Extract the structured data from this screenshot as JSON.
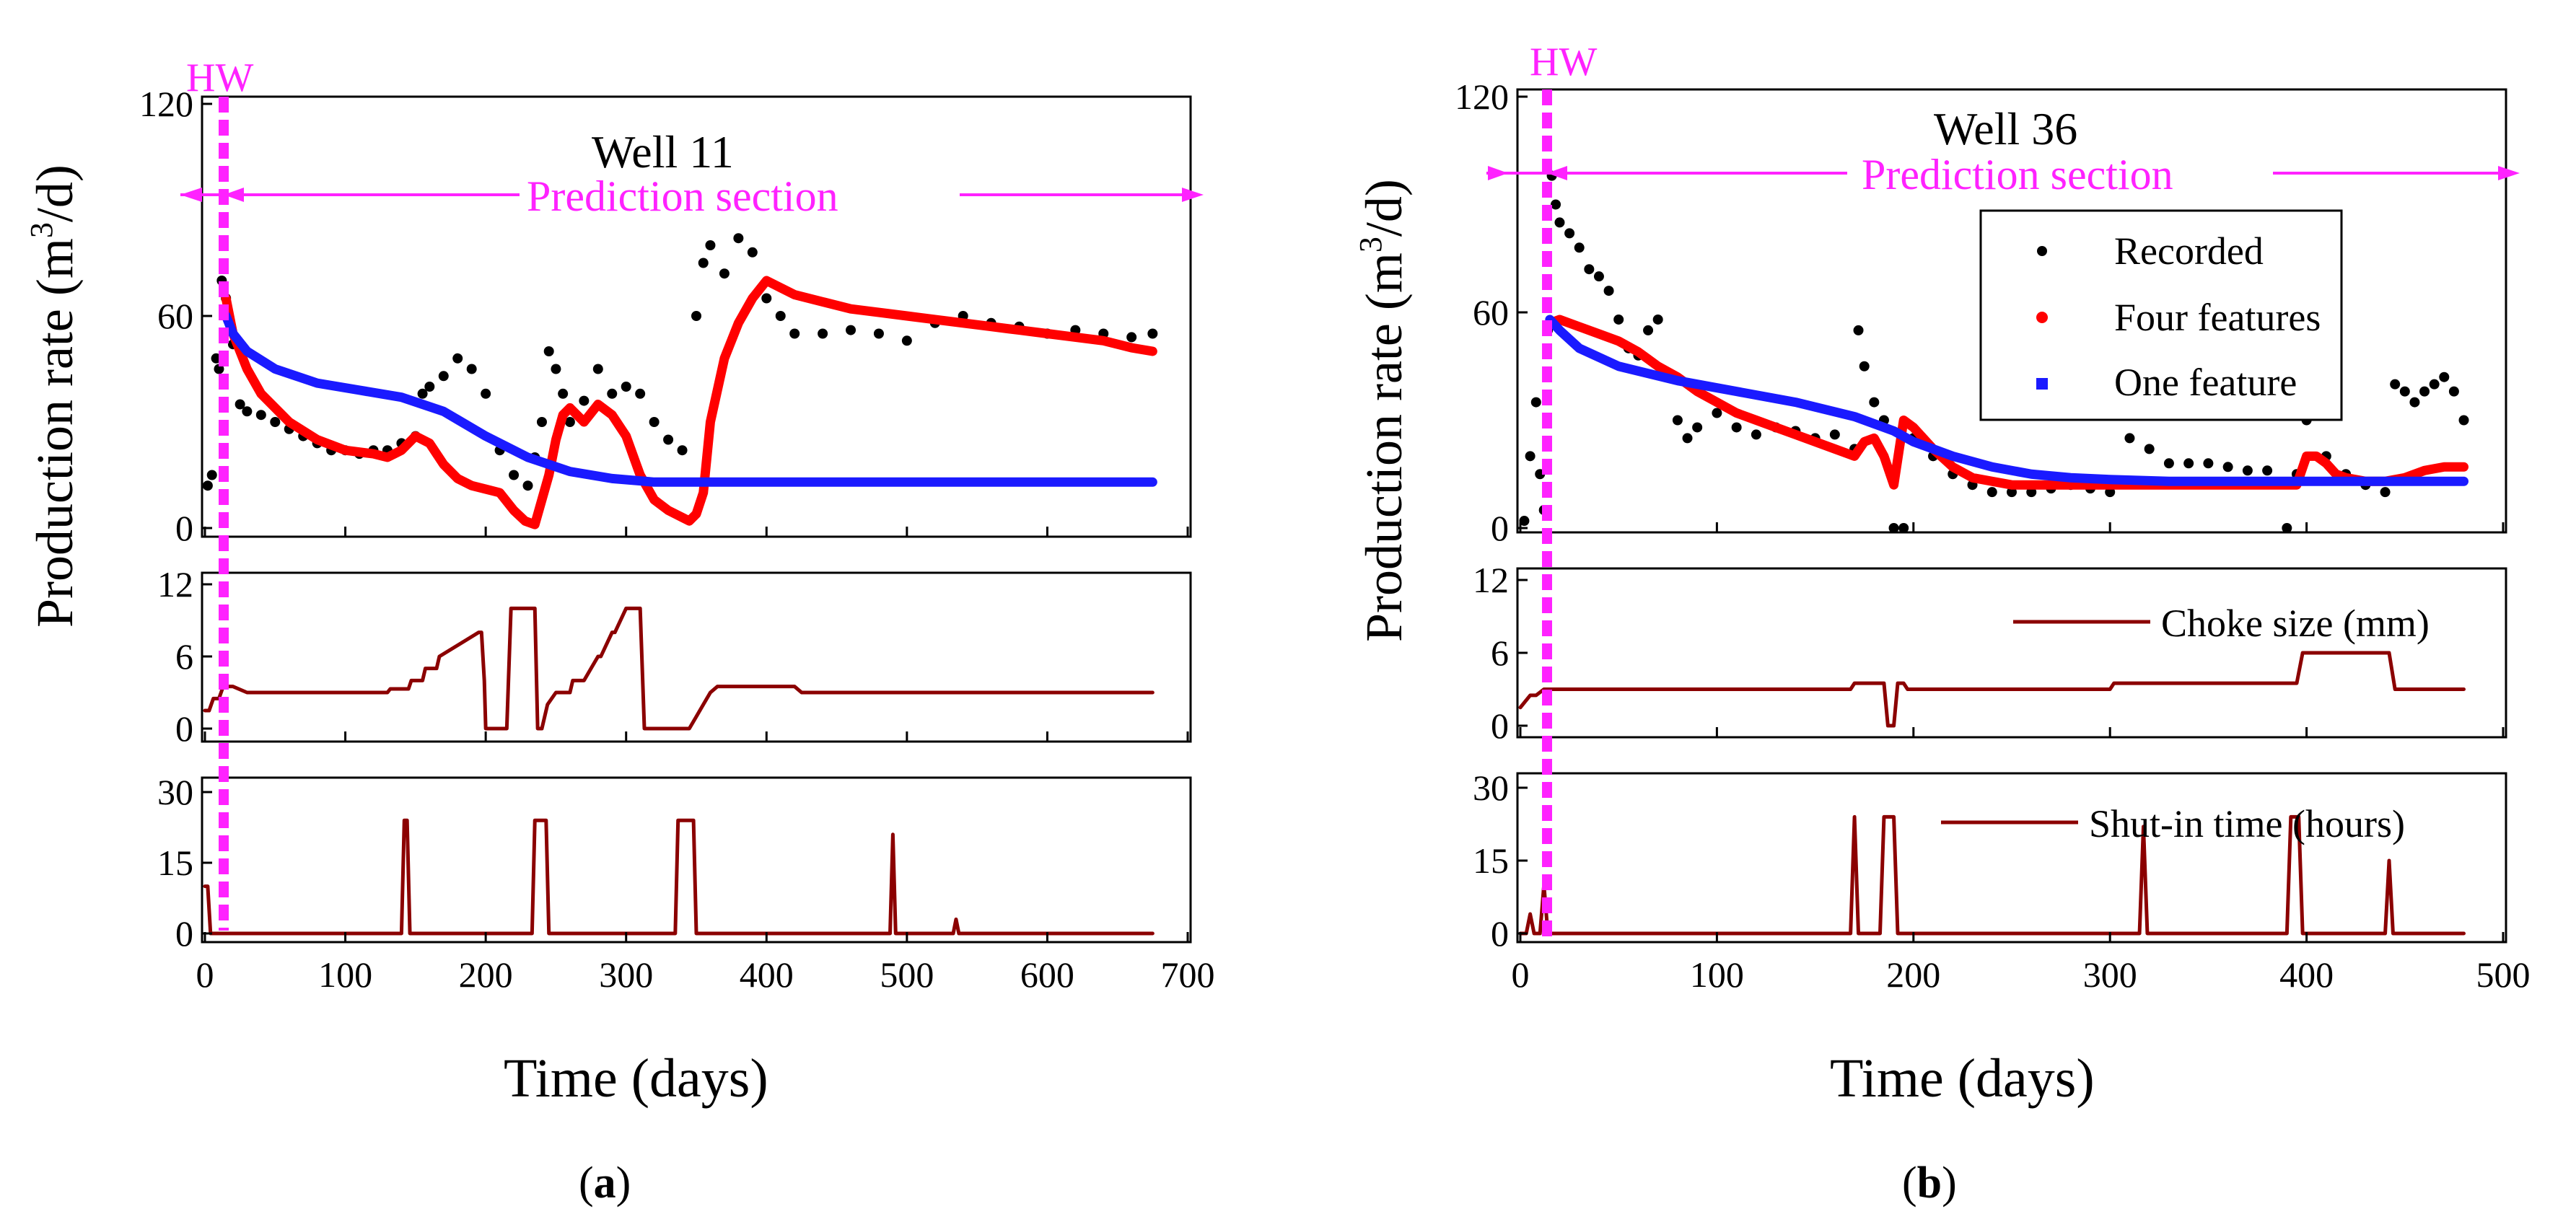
{
  "colors": {
    "recorded": "#000000",
    "four_features": "#ff0000",
    "one_feature": "#1a1aff",
    "choke": "#8b0000",
    "shutin": "#8b0000",
    "highlight": "#ff22ff"
  },
  "chart_data": [
    {
      "type": "scatter",
      "panel": "(a)",
      "title": "Well 11",
      "marker_label": "HW",
      "section_label": "Prediction section",
      "hw_day": 15,
      "xlabel": "Time (days)",
      "xlim": [
        0,
        700
      ],
      "xticks": [
        "0",
        "100",
        "200",
        "300",
        "400",
        "500",
        "600",
        "700"
      ],
      "ylabel": "Production rate (m³/d)",
      "ylabel_main": "Production rate (m",
      "ylabel_sup": "3",
      "ylabel_tail": "/d)",
      "top": {
        "ylim": [
          0,
          120
        ],
        "yticks": [
          "0",
          "60",
          "120"
        ],
        "series": [
          {
            "name": "Recorded",
            "style": "dots",
            "x": [
              2,
              5,
              8,
              10,
              12,
              15,
              20,
              25,
              30,
              40,
              50,
              60,
              70,
              80,
              90,
              100,
              110,
              120,
              130,
              140,
              150,
              155,
              160,
              170,
              180,
              190,
              200,
              210,
              220,
              230,
              235,
              240,
              245,
              250,
              255,
              260,
              270,
              280,
              290,
              300,
              310,
              320,
              330,
              340,
              350,
              355,
              360,
              370,
              380,
              390,
              400,
              410,
              420,
              440,
              460,
              480,
              500,
              520,
              540,
              560,
              580,
              600,
              620,
              640,
              660,
              675
            ],
            "y": [
              12,
              15,
              48,
              45,
              70,
              65,
              52,
              35,
              33,
              32,
              30,
              28,
              26,
              24,
              22,
              22,
              21,
              22,
              22,
              24,
              26,
              38,
              40,
              43,
              48,
              45,
              38,
              22,
              15,
              12,
              20,
              30,
              50,
              45,
              38,
              30,
              36,
              45,
              38,
              40,
              38,
              30,
              25,
              22,
              60,
              75,
              80,
              72,
              82,
              78,
              65,
              60,
              55,
              55,
              56,
              55,
              53,
              58,
              60,
              58,
              57,
              55,
              56,
              55,
              54,
              55
            ]
          },
          {
            "name": "Four features",
            "style": "thick-line",
            "x": [
              15,
              20,
              30,
              40,
              60,
              80,
              100,
              120,
              130,
              140,
              150,
              160,
              170,
              180,
              190,
              200,
              210,
              220,
              228,
              235,
              240,
              245,
              250,
              255,
              260,
              270,
              280,
              290,
              300,
              310,
              320,
              330,
              340,
              345,
              350,
              355,
              360,
              370,
              380,
              390,
              400,
              410,
              420,
              440,
              460,
              480,
              500,
              520,
              540,
              560,
              580,
              600,
              620,
              640,
              660,
              675
            ],
            "y": [
              65,
              55,
              45,
              38,
              30,
              25,
              22,
              21,
              20,
              22,
              26,
              24,
              18,
              14,
              12,
              11,
              10,
              5,
              2,
              1,
              8,
              15,
              25,
              32,
              34,
              30,
              35,
              32,
              26,
              15,
              8,
              5,
              3,
              2,
              4,
              10,
              30,
              48,
              58,
              65,
              70,
              68,
              66,
              64,
              62,
              61,
              60,
              59,
              58,
              57,
              56,
              55,
              54,
              53,
              51,
              50
            ]
          },
          {
            "name": "One feature",
            "style": "thick-line",
            "x": [
              15,
              20,
              30,
              50,
              80,
              110,
              140,
              170,
              200,
              230,
              260,
              290,
              320,
              350,
              400,
              450,
              500,
              550,
              600,
              650,
              675
            ],
            "y": [
              60,
              55,
              50,
              45,
              41,
              39,
              37,
              33,
              26,
              20,
              16,
              14,
              13,
              13,
              13,
              13,
              13,
              13,
              13,
              13,
              13
            ]
          }
        ]
      },
      "mid": {
        "ylim": [
          0,
          12
        ],
        "yticks": [
          "0",
          "6",
          "12"
        ],
        "series": [
          {
            "name": "Choke size (mm)",
            "x": [
              0,
              3,
              6,
              10,
              13,
              20,
              30,
              130,
              132,
              145,
              147,
              155,
              157,
              165,
              167,
              195,
              197,
              199,
              200,
              215,
              218,
              235,
              237,
              240,
              244,
              250,
              253,
              260,
              262,
              270,
              275,
              280,
              282,
              290,
              292,
              300,
              303,
              310,
              313,
              345,
              350,
              355,
              360,
              365,
              370,
              375,
              380,
              400,
              410,
              420,
              425,
              430,
              500,
              600,
              675
            ],
            "y": [
              1.5,
              1.5,
              2.5,
              2.5,
              3.5,
              3.5,
              3,
              3,
              3.3,
              3.3,
              4,
              4,
              5,
              5,
              6,
              8,
              8,
              4,
              0,
              0,
              10,
              10,
              0,
              0,
              2,
              3,
              3,
              3,
              4,
              4,
              5,
              6,
              6,
              8,
              8,
              10,
              10,
              10,
              0,
              0,
              1,
              2,
              3,
              3.5,
              3.5,
              3.5,
              3.5,
              3.5,
              3.5,
              3.5,
              3,
              3,
              3,
              3,
              3
            ]
          }
        ]
      },
      "bot": {
        "ylim": [
          0,
          30
        ],
        "yticks": [
          "0",
          "15",
          "30"
        ],
        "series": [
          {
            "name": "Shut-in time (hours)",
            "x": [
              0,
              2,
              4,
              140,
              142,
              144,
              146,
              148,
              233,
              235,
              243,
              245,
              247,
              335,
              337,
              348,
              350,
              352,
              488,
              490,
              492,
              533,
              535,
              537,
              675
            ],
            "y": [
              10,
              10,
              0,
              0,
              24,
              24,
              0,
              0,
              0,
              24,
              24,
              0,
              0,
              0,
              24,
              24,
              0,
              0,
              0,
              21,
              0,
              0,
              3,
              0,
              0
            ]
          }
        ]
      },
      "caption": "(a)",
      "caption_bold": "a"
    },
    {
      "type": "scatter",
      "panel": "(b)",
      "title": "Well 36",
      "marker_label": "HW",
      "section_label": "Prediction section",
      "hw_day": 15,
      "xlabel": "Time (days)",
      "xlim": [
        0,
        500
      ],
      "xticks": [
        "0",
        "100",
        "200",
        "300",
        "400",
        "500"
      ],
      "ylabel": "Production rate (m³/d)",
      "ylabel_main": "Production rate (m",
      "ylabel_sup": "3",
      "ylabel_tail": "/d)",
      "legend": [
        "Recorded",
        "Four features",
        "One feature"
      ],
      "top": {
        "ylim": [
          0,
          120
        ],
        "yticks": [
          "0",
          "60",
          "120"
        ],
        "series": [
          {
            "name": "Recorded",
            "style": "dots",
            "x": [
              2,
              5,
              8,
              10,
              12,
              14,
              16,
              18,
              20,
              25,
              30,
              35,
              40,
              45,
              50,
              55,
              60,
              65,
              70,
              75,
              80,
              85,
              90,
              100,
              110,
              120,
              130,
              140,
              150,
              160,
              170,
              172,
              175,
              180,
              185,
              190,
              195,
              200,
              210,
              220,
              230,
              240,
              250,
              260,
              270,
              280,
              290,
              300,
              310,
              320,
              330,
              340,
              350,
              360,
              370,
              380,
              390,
              395,
              400,
              405,
              410,
              420,
              430,
              440,
              445,
              450,
              455,
              460,
              465,
              470,
              475,
              480
            ],
            "y": [
              2,
              20,
              35,
              15,
              5,
              55,
              98,
              90,
              85,
              82,
              78,
              72,
              70,
              66,
              58,
              50,
              48,
              55,
              58,
              42,
              30,
              25,
              28,
              32,
              28,
              26,
              28,
              27,
              25,
              26,
              22,
              55,
              45,
              35,
              30,
              0,
              0,
              25,
              20,
              15,
              12,
              10,
              10,
              10,
              11,
              12,
              11,
              10,
              25,
              22,
              18,
              18,
              18,
              17,
              16,
              16,
              0,
              15,
              30,
              35,
              20,
              15,
              12,
              10,
              40,
              38,
              35,
              38,
              40,
              42,
              38,
              30
            ]
          },
          {
            "name": "Four features",
            "style": "thick-line",
            "x": [
              15,
              20,
              30,
              40,
              50,
              60,
              70,
              80,
              90,
              100,
              110,
              120,
              130,
              140,
              150,
              160,
              170,
              175,
              180,
              185,
              190,
              195,
              200,
              210,
              220,
              230,
              240,
              250,
              260,
              270,
              280,
              290,
              300,
              320,
              340,
              360,
              380,
              395,
              400,
              405,
              410,
              415,
              420,
              430,
              440,
              450,
              460,
              470,
              480
            ],
            "y": [
              57,
              58,
              56,
              54,
              52,
              49,
              45,
              42,
              38,
              35,
              32,
              30,
              28,
              26,
              24,
              22,
              20,
              24,
              25,
              20,
              12,
              30,
              28,
              22,
              17,
              14,
              13,
              12,
              12,
              12,
              12,
              12,
              12,
              12,
              12,
              12,
              12,
              12,
              20,
              20,
              18,
              15,
              14,
              13,
              13,
              14,
              16,
              17,
              17
            ]
          },
          {
            "name": "One feature",
            "style": "thick-line",
            "x": [
              15,
              20,
              30,
              50,
              80,
              110,
              140,
              170,
              190,
              200,
              220,
              240,
              260,
              280,
              300,
              330,
              360,
              400,
              440,
              480
            ],
            "y": [
              58,
              55,
              50,
              45,
              41,
              38,
              35,
              31,
              27,
              24,
              20,
              17,
              15,
              14,
              13.5,
              13,
              13,
              13,
              13,
              13
            ]
          }
        ]
      },
      "mid": {
        "ylim": [
          0,
          12
        ],
        "yticks": [
          "0",
          "6",
          "12"
        ],
        "legend": "Choke size (mm)",
        "series": [
          {
            "name": "Choke size (mm)",
            "x": [
              0,
              5,
              8,
              12,
              15,
              20,
              168,
              170,
              185,
              187,
              190,
              192,
              195,
              197,
              200,
              300,
              302,
              395,
              398,
              442,
              445,
              480
            ],
            "y": [
              1.5,
              2.5,
              2.5,
              3,
              3,
              3,
              3,
              3.5,
              3.5,
              0,
              0,
              3.5,
              3.5,
              3,
              3,
              3,
              3.5,
              3.5,
              6,
              6,
              3,
              3
            ]
          }
        ]
      },
      "bot": {
        "ylim": [
          0,
          30
        ],
        "yticks": [
          "0",
          "15",
          "30"
        ],
        "legend": "Shut-in time (hours)",
        "series": [
          {
            "name": "Shut-in time (hours)",
            "x": [
              0,
              3,
              5,
              7,
              10,
              12,
              14,
              168,
              170,
              172,
              183,
              185,
              190,
              192,
              315,
              317,
              319,
              390,
              392,
              396,
              398,
              440,
              442,
              444,
              480
            ],
            "y": [
              0,
              0,
              4,
              0,
              0,
              10,
              0,
              0,
              24,
              0,
              0,
              24,
              24,
              0,
              0,
              22,
              0,
              0,
              24,
              24,
              0,
              0,
              15,
              0,
              0
            ]
          }
        ]
      },
      "caption": "(b)",
      "caption_bold": "b"
    }
  ]
}
